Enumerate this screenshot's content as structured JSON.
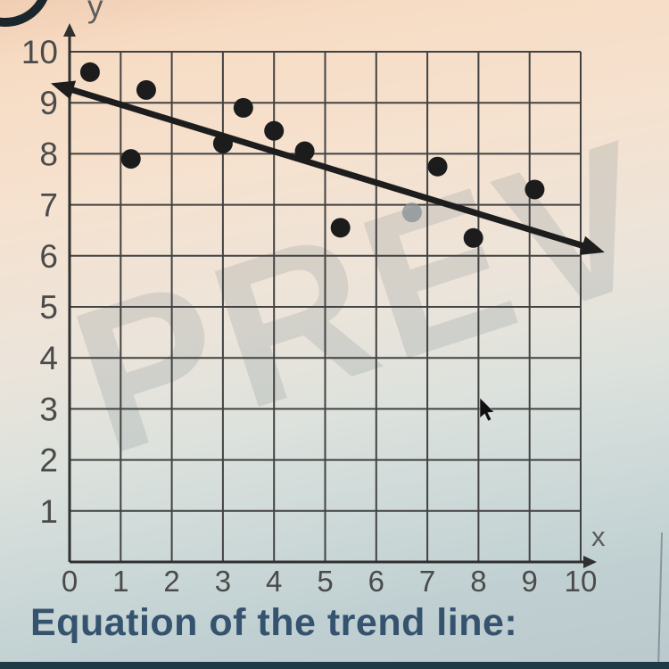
{
  "page": {
    "watermark": "PREV",
    "bottom_caption": "Equation of the trend line:"
  },
  "chart_data": {
    "type": "scatter",
    "title": "",
    "xlabel": "x",
    "ylabel": "y",
    "xlim": [
      0,
      10
    ],
    "ylim": [
      0,
      10
    ],
    "grid": true,
    "x_ticks": [
      0,
      1,
      2,
      3,
      4,
      5,
      6,
      7,
      8,
      9,
      10
    ],
    "y_ticks": [
      1,
      2,
      3,
      4,
      5,
      6,
      7,
      8,
      9,
      10
    ],
    "points": [
      {
        "x": 0.4,
        "y": 9.6
      },
      {
        "x": 1.2,
        "y": 7.9
      },
      {
        "x": 1.5,
        "y": 9.25
      },
      {
        "x": 3.0,
        "y": 8.2
      },
      {
        "x": 3.4,
        "y": 8.9
      },
      {
        "x": 4.0,
        "y": 8.45
      },
      {
        "x": 4.6,
        "y": 8.05
      },
      {
        "x": 5.3,
        "y": 6.55
      },
      {
        "x": 6.7,
        "y": 6.85,
        "faded": true
      },
      {
        "x": 7.2,
        "y": 7.75
      },
      {
        "x": 7.9,
        "y": 6.35
      },
      {
        "x": 9.1,
        "y": 7.3
      }
    ],
    "trend_line": {
      "x1": -0.1,
      "y1": 9.3,
      "x2": 10.2,
      "y2": 6.15
    }
  },
  "colors": {
    "dot": "#1c1c1c",
    "faded_dot": "#8b9397",
    "trend_line": "#1d1d1d",
    "grid_line": "#424242",
    "axis": "#303030",
    "tick_label": "#4b4b4b",
    "axis_letter": "#5c5c5c",
    "caption_text": "#35536e",
    "bottom_bar": "#1e3a44",
    "watermark": "rgba(128,140,145,0.22)",
    "cursor": "#101010"
  }
}
